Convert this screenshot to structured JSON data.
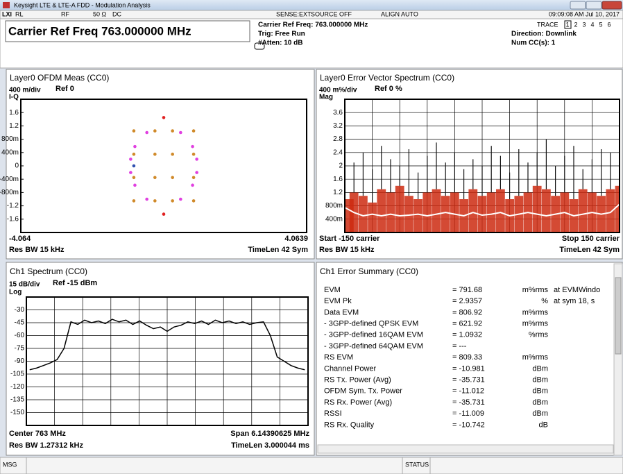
{
  "window": {
    "title": "Keysight LTE & LTE-A FDD - Modulation Analysis"
  },
  "toolbar": {
    "lxi": "LXI",
    "rl": "RL",
    "rf": "RF",
    "impedance": "50 Ω",
    "coupling": "DC",
    "sense": "SENSE:EXT",
    "source": "SOURCE OFF",
    "align": "ALIGN AUTO",
    "time": "09:09:08 AM Jul 10, 2017"
  },
  "header": {
    "title": "Carrier Ref Freq 763.000000 MHz",
    "info": [
      "Carrier Ref Freq: 763.000000 MHz",
      "Trig: Free Run",
      "#Atten: 10 dB"
    ],
    "trace_label": "TRACE",
    "traces": [
      "1",
      "2",
      "3",
      "4",
      "5",
      "6"
    ],
    "direction": "Direction: Downlink",
    "num_cc": "Num CC(s): 1"
  },
  "constellation": {
    "type": "scatter",
    "title": "Layer0 OFDM Meas (CC0)",
    "scale": "400 m/div",
    "ref": "Ref 0",
    "mode": "I-Q",
    "xlim": [
      -4.064,
      4.0639
    ],
    "ylim": [
      -2,
      2
    ],
    "grid": false,
    "yticks": [
      1.6,
      1.2,
      {
        "value": 0.8,
        "label": "800m"
      },
      {
        "value": 0.4,
        "label": "400m"
      },
      0,
      {
        "value": -0.4,
        "label": "-400m"
      },
      {
        "value": -0.8,
        "label": "-800m"
      },
      -1.2,
      -1.6
    ],
    "footer_left": "Res BW 15 kHz",
    "footer_right": "TimeLen 42 Sym",
    "point_sets": [
      {
        "color": "#d08a2a",
        "x": [
          -0.85,
          -0.25,
          0.25,
          0.85,
          -0.85,
          -0.25,
          0.25,
          0.85,
          -0.85,
          -0.25,
          0.25,
          0.85,
          -0.85,
          -0.25,
          0.25,
          0.85
        ],
        "y": [
          1.05,
          1.05,
          1.05,
          1.05,
          0.35,
          0.35,
          0.35,
          0.35,
          -0.35,
          -0.35,
          -0.35,
          -0.35,
          -1.05,
          -1.05,
          -1.05,
          -1.05
        ]
      },
      {
        "color": "#e040e0",
        "x": [
          0.82,
          0.48,
          -0.48,
          -0.82,
          -0.82,
          -0.48,
          0.48,
          0.82,
          0.94,
          -0.94,
          -0.94,
          0.94
        ],
        "y": [
          0.58,
          1.0,
          1.0,
          0.58,
          -0.58,
          -1.0,
          -1.0,
          -0.58,
          0.2,
          0.2,
          -0.2,
          -0.2
        ]
      },
      {
        "color": "#e02020",
        "x": [
          0,
          0
        ],
        "y": [
          1.45,
          -1.45
        ]
      },
      {
        "color": "#3050b0",
        "x": [
          -0.85
        ],
        "y": [
          0
        ]
      }
    ]
  },
  "evm_spectrum": {
    "type": "bar",
    "title": "Layer0 Error Vector Spectrum (CC0)",
    "scale": "400 m%/div",
    "ref": "Ref 0 %",
    "mode": "Mag",
    "xlim": [
      -150,
      150
    ],
    "ylim": [
      0,
      4
    ],
    "grid": true,
    "yticks": [
      3.6,
      3.2,
      2.8,
      2.4,
      2,
      1.6,
      1.2,
      {
        "value": 0.8,
        "label": "800m"
      },
      {
        "value": 0.4,
        "label": "400m"
      }
    ],
    "start": "Start -150 carrier",
    "stop": "Stop 150 carrier",
    "footer_left": "Res BW 15 kHz",
    "footer_right": "TimeLen 42 Sym",
    "body_color": "#cc2a10",
    "peak_color": "#111111",
    "rms_color": "#ffffff",
    "x": [
      -150,
      -140,
      -130,
      -120,
      -110,
      -100,
      -90,
      -80,
      -70,
      -60,
      -50,
      -40,
      -30,
      -20,
      -10,
      0,
      10,
      20,
      30,
      40,
      50,
      60,
      70,
      80,
      90,
      100,
      110,
      120,
      130,
      140,
      150
    ],
    "peak": [
      1.6,
      2.1,
      2.4,
      1.9,
      2.6,
      2.2,
      2.0,
      2.5,
      1.8,
      2.3,
      2.7,
      2.1,
      2.4,
      1.9,
      2.2,
      2.0,
      2.6,
      2.3,
      1.8,
      2.5,
      2.1,
      2.4,
      2.8,
      2.0,
      2.3,
      2.6,
      1.9,
      2.2,
      2.5,
      2.4,
      2.9
    ],
    "body": [
      1.0,
      1.2,
      1.1,
      0.9,
      1.3,
      1.2,
      1.4,
      1.1,
      1.0,
      1.2,
      1.3,
      1.1,
      1.2,
      1.0,
      1.3,
      1.1,
      1.2,
      1.3,
      1.0,
      1.1,
      1.2,
      1.4,
      1.3,
      1.1,
      1.2,
      1.0,
      1.3,
      1.2,
      1.1,
      1.3,
      1.4
    ],
    "rms": [
      0.75,
      0.6,
      0.5,
      0.55,
      0.5,
      0.55,
      0.5,
      0.52,
      0.55,
      0.5,
      0.55,
      0.6,
      0.55,
      0.5,
      0.6,
      0.52,
      0.55,
      0.6,
      0.5,
      0.55,
      0.6,
      0.55,
      0.5,
      0.55,
      0.6,
      0.5,
      0.55,
      0.6,
      0.55,
      0.6,
      0.85
    ]
  },
  "spectrum": {
    "type": "line",
    "title": "Ch1 Spectrum (CC0)",
    "scale": "15 dB/div",
    "ref": "Ref -15 dBm",
    "mode": "Log",
    "xlim": [
      759.928046875,
      766.071953125
    ],
    "ylim": [
      -165,
      -15
    ],
    "grid": true,
    "color": "#000000",
    "yticks": [
      -30,
      -45,
      -60,
      -75,
      -90,
      -105,
      -120,
      -135,
      -150
    ],
    "center": "Center 763 MHz",
    "span": "Span 6.14390625 MHz",
    "footer_left": "Res BW 1.27312 kHz",
    "footer_right": "TimeLen 3.000044 ms",
    "x": [
      760.0,
      760.15,
      760.3,
      760.45,
      760.6,
      760.75,
      760.9,
      761.05,
      761.2,
      761.35,
      761.5,
      761.65,
      761.8,
      761.95,
      762.1,
      762.25,
      762.4,
      762.55,
      762.7,
      762.85,
      763.0,
      763.15,
      763.3,
      763.45,
      763.6,
      763.75,
      763.9,
      764.05,
      764.2,
      764.35,
      764.5,
      764.65,
      764.8,
      764.95,
      765.1,
      765.25,
      765.4,
      765.55,
      765.7,
      765.85,
      766.0
    ],
    "values": [
      -100,
      -98,
      -95,
      -92,
      -88,
      -75,
      -44,
      -47,
      -42,
      -45,
      -43,
      -46,
      -41,
      -44,
      -42,
      -47,
      -43,
      -48,
      -52,
      -50,
      -55,
      -50,
      -48,
      -44,
      -46,
      -43,
      -47,
      -42,
      -45,
      -43,
      -46,
      -44,
      -47,
      -45,
      -44,
      -60,
      -85,
      -90,
      -95,
      -98,
      -100
    ]
  },
  "error_summary": {
    "title": "Ch1 Error Summary (CC0)",
    "rows": [
      {
        "label": "EVM",
        "value": "= 791.68",
        "unit": "m%rms",
        "note": "at  EVMWindo"
      },
      {
        "label": "EVM Pk",
        "value": "= 2.9357",
        "unit": "%",
        "note": "at  sym 18,  s"
      },
      {
        "label": "Data EVM",
        "value": "= 806.92",
        "unit": "m%rms"
      },
      {
        "label": " - 3GPP-defined QPSK EVM",
        "value": "= 621.92",
        "unit": "m%rms"
      },
      {
        "label": " - 3GPP-defined 16QAM EVM",
        "value": "= 1.0932",
        "unit": "%rms"
      },
      {
        "label": " - 3GPP-defined 64QAM EVM",
        "value": "= ---"
      },
      {
        "label": "RS EVM",
        "value": "= 809.33",
        "unit": "m%rms"
      },
      {
        "label": "Channel Power",
        "value": "= -10.981",
        "unit": "dBm"
      },
      {
        "label": "RS Tx. Power (Avg)",
        "value": "= -35.731",
        "unit": "dBm"
      },
      {
        "label": "OFDM Sym. Tx. Power",
        "value": "= -11.012",
        "unit": "dBm"
      },
      {
        "label": "RS Rx. Power (Avg)",
        "value": "= -35.731",
        "unit": "dBm"
      },
      {
        "label": "RSSI",
        "value": "= -11.009",
        "unit": "dBm"
      },
      {
        "label": "RS Rx. Quality",
        "value": "= -10.742",
        "unit": "dB"
      }
    ]
  },
  "status": {
    "msg": "MSG",
    "status": "STATUS"
  }
}
